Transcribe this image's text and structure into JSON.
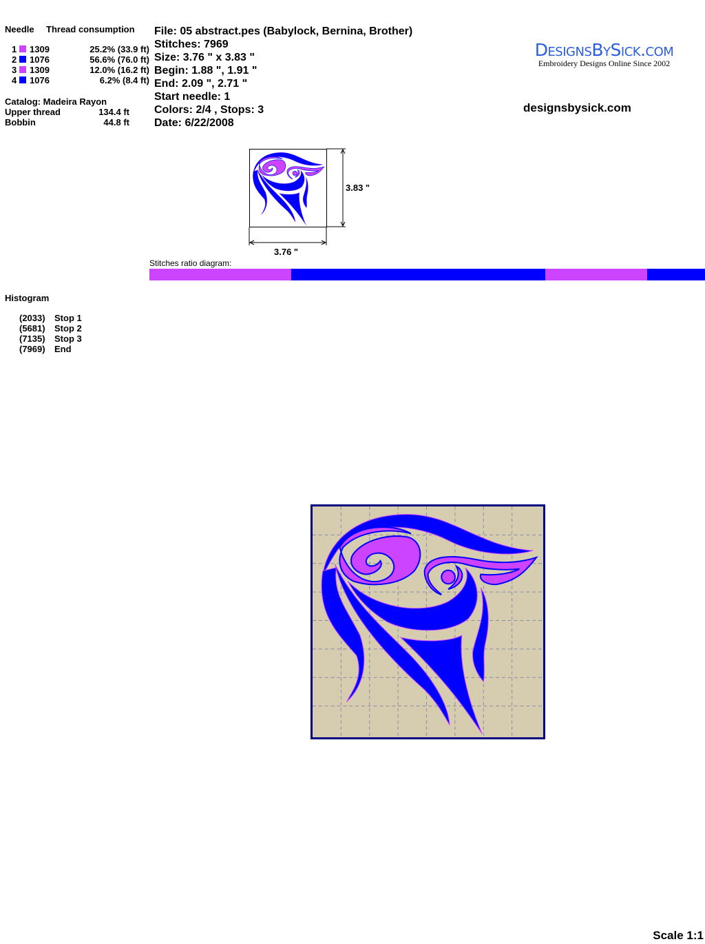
{
  "needles": {
    "header_needle": "Needle",
    "header_thread": "Thread consumption",
    "rows": [
      {
        "n": "1",
        "color": "#cc44ff",
        "code": "1309",
        "pct": "25.2% (33.9 ft)"
      },
      {
        "n": "2",
        "color": "#0000ff",
        "code": "1076",
        "pct": "56.6% (76.0 ft)"
      },
      {
        "n": "3",
        "color": "#cc44ff",
        "code": "1309",
        "pct": "12.0% (16.2 ft)"
      },
      {
        "n": "4",
        "color": "#0000ff",
        "code": "1076",
        "pct": "6.2% (8.4 ft)"
      }
    ],
    "catalog": "Catalog: Madeira Rayon",
    "upper_label": "Upper thread",
    "upper_value": "134.4 ft",
    "bobbin_label": "Bobbin",
    "bobbin_value": "44.8 ft"
  },
  "info": {
    "file": "File: 05 abstract.pes  (Babylock, Bernina, Brother)",
    "stitches": "Stitches: 7969",
    "size": "Size: 3.76 \" x 3.83 \"",
    "begin": "Begin: 1.88 \", 1.91 \"",
    "end": "End: 2.09 \", 2.71 \"",
    "start_needle": "Start needle: 1",
    "colors": "Colors: 2/4 , Stops: 3",
    "date": "Date: 6/22/2008"
  },
  "logo": {
    "text": "DesignsBySick.com",
    "tagline": "Embroidery Designs Online Since 2002"
  },
  "website": "designsbysick.com",
  "thumb": {
    "height_label": "3.83 \"",
    "width_label": "3.76 \""
  },
  "ratio": {
    "label": "Stitches ratio diagram:"
  },
  "histogram": {
    "title": "Histogram",
    "stops": [
      {
        "count": "(2033)",
        "label": "Stop 1",
        "stitch": 2033,
        "color": "#cc44ff"
      },
      {
        "count": "(5681)",
        "label": "Stop 2",
        "stitch": 5681,
        "color": "#0000ff"
      },
      {
        "count": "(7135)",
        "label": "Stop 3",
        "stitch": 7135,
        "color": "#cc44ff"
      },
      {
        "count": "(7969)",
        "label": "End",
        "stitch": 7969,
        "color": "#0000ff"
      }
    ]
  },
  "colors": {
    "magenta": "#cc44ff",
    "blue": "#0000ff",
    "fabric": "#d6cdb0",
    "frame": "#000080"
  },
  "scale": "Scale 1:1"
}
